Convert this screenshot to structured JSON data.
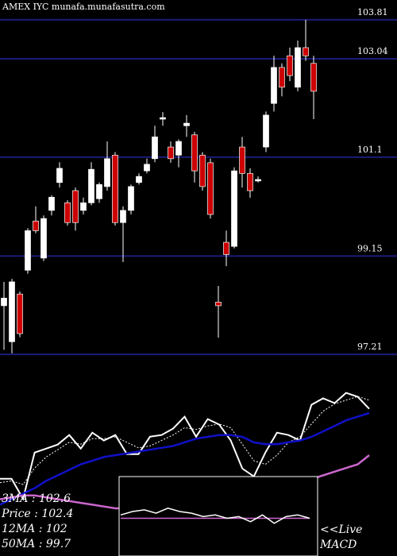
{
  "chart_data": {
    "type": "candlestick",
    "title": "AMEX  IYC munafa.munafasutra.com",
    "ylim": [
      97.15,
      104.2
    ],
    "yticks": [
      103.81,
      103.04,
      101.1,
      99.15,
      97.21
    ],
    "grid_color": "#1c1c7a",
    "up_color": "#ffffff",
    "down_color": "#cc0000",
    "open": [
      98.17,
      97.46,
      98.4,
      98.87,
      99.84,
      99.11,
      100.05,
      100.6,
      100.2,
      100.44,
      100.05,
      100.2,
      100.28,
      100.52,
      101.14,
      99.81,
      100.05,
      100.6,
      100.83,
      101.07,
      101.85,
      101.3,
      101.14,
      101.72,
      101.54,
      101.14,
      100.99,
      98.24,
      99.42,
      99.34,
      101.3,
      100.78,
      100.63,
      101.3,
      102.16,
      102.87,
      103.1,
      102.48,
      103.26,
      102.95
    ],
    "high": [
      98.64,
      98.7,
      98.45,
      99.7,
      100.13,
      99.95,
      100.35,
      101.0,
      100.25,
      100.5,
      100.3,
      101.0,
      100.6,
      101.41,
      101.2,
      100.13,
      100.56,
      100.78,
      101.07,
      101.72,
      101.99,
      101.41,
      101.45,
      101.93,
      101.6,
      101.2,
      101.07,
      98.56,
      99.65,
      100.9,
      101.5,
      100.88,
      100.72,
      102.0,
      103.1,
      102.95,
      103.26,
      103.4,
      103.81,
      103.1
    ],
    "low": [
      97.3,
      97.23,
      97.55,
      98.8,
      99.6,
      99.05,
      99.95,
      100.5,
      99.75,
      99.65,
      99.97,
      100.15,
      100.2,
      100.44,
      99.75,
      99.03,
      99.97,
      100.56,
      100.78,
      101.0,
      101.72,
      100.99,
      100.9,
      101.5,
      100.6,
      100.44,
      99.89,
      97.54,
      98.95,
      99.3,
      100.5,
      100.3,
      100.6,
      101.2,
      102.0,
      102.3,
      102.6,
      102.4,
      103.0,
      101.85
    ],
    "close": [
      98.32,
      98.64,
      97.62,
      99.65,
      99.65,
      99.89,
      100.31,
      100.88,
      99.81,
      99.81,
      100.2,
      100.86,
      100.56,
      101.07,
      99.81,
      100.05,
      100.52,
      100.72,
      100.96,
      101.5,
      101.88,
      101.07,
      101.41,
      101.77,
      100.83,
      100.52,
      99.97,
      98.17,
      99.18,
      100.83,
      100.78,
      100.44,
      100.66,
      101.93,
      102.87,
      102.48,
      102.71,
      103.26,
      103.1,
      102.4
    ],
    "ma_panel": {
      "ylim": [
        97.0,
        103.5
      ],
      "series": [
        {
          "color": "#ffffff",
          "style": "solid",
          "values": [
            98.61,
            98.61,
            97.52,
            100.04,
            100.26,
            100.48,
            101.0,
            100.26,
            101.13,
            100.7,
            101.0,
            99.96,
            99.96,
            100.91,
            101.0,
            101.35,
            102.0,
            100.91,
            101.87,
            101.57,
            100.7,
            99.17,
            98.74,
            100.04,
            101.13,
            101.0,
            100.7,
            102.65,
            103.0,
            102.74,
            103.3,
            103.09,
            102.43
          ]
        },
        {
          "color": "#ffffff",
          "style": "dotted",
          "values": [
            98.4,
            98.5,
            98.3,
            99.2,
            99.8,
            100.2,
            100.6,
            100.5,
            100.8,
            100.8,
            100.9,
            100.6,
            100.3,
            100.4,
            100.7,
            101.0,
            101.4,
            101.3,
            101.5,
            101.6,
            101.4,
            100.5,
            99.6,
            99.4,
            99.9,
            100.6,
            100.9,
            101.6,
            102.3,
            102.7,
            102.9,
            103.1,
            102.9
          ]
        },
        {
          "color": "#1010c8",
          "style": "solid",
          "values": [
            97.2,
            97.5,
            97.8,
            98.1,
            98.5,
            98.8,
            99.1,
            99.4,
            99.6,
            99.8,
            99.9,
            100.0,
            100.1,
            100.2,
            100.3,
            100.4,
            100.6,
            100.8,
            100.9,
            101.0,
            101.0,
            100.9,
            100.6,
            100.5,
            100.5,
            100.6,
            100.7,
            100.9,
            101.2,
            101.5,
            101.8,
            102.0,
            102.2
          ]
        },
        {
          "color": "#cc66cc",
          "style": "solid",
          "values": [
            97.5,
            97.6,
            97.7,
            97.7,
            97.6,
            97.5,
            97.4,
            97.3,
            97.2,
            97.1,
            97.0,
            97.0,
            97.0,
            97.0,
            97.1,
            97.2,
            97.3,
            97.4,
            97.5,
            97.6,
            97.7,
            97.9,
            98.0,
            98.2,
            98.3,
            98.4,
            98.5,
            98.6,
            98.8,
            99.0,
            99.2,
            99.4,
            99.9
          ]
        }
      ],
      "legend": [
        "3MA : 102.6",
        "Price : 102.4",
        "12MA : 102",
        "50MA : 99.7"
      ]
    },
    "macd": {
      "ylim": [
        -1,
        1
      ],
      "macd_color": "#ffffff",
      "signal_color": "#cc66cc",
      "values": [
        0.1,
        0.2,
        0.25,
        0.15,
        0.3,
        0.2,
        0.15,
        0.05,
        0.1,
        0.0,
        0.05,
        -0.1,
        0.1,
        -0.15,
        0.05,
        0.1,
        0.0
      ],
      "signal": [
        0,
        0,
        0,
        0,
        0,
        0,
        0,
        0,
        0,
        0,
        0,
        0,
        0,
        0,
        0,
        0,
        0
      ],
      "label_1": "<<Live",
      "label_2": "MACD"
    }
  }
}
